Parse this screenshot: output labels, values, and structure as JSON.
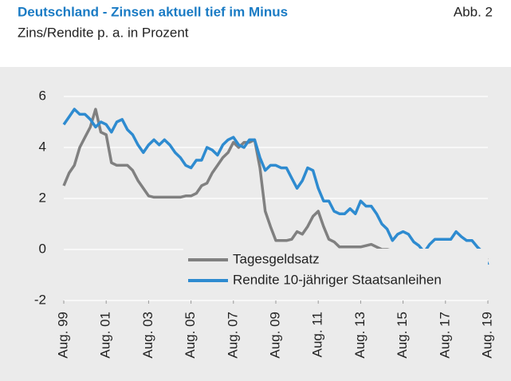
{
  "chart_data": {
    "type": "line",
    "title": "Deutschland - Zinsen aktuell tief im Minus",
    "subtitle": "Zins/Rendite p. a. in Prozent",
    "figure_label": "Abb. 2",
    "x": [
      "1999-08",
      "1999-11",
      "2000-02",
      "2000-05",
      "2000-08",
      "2000-11",
      "2001-02",
      "2001-05",
      "2001-08",
      "2001-11",
      "2002-02",
      "2002-05",
      "2002-08",
      "2002-11",
      "2003-02",
      "2003-05",
      "2003-08",
      "2003-11",
      "2004-02",
      "2004-05",
      "2004-08",
      "2004-11",
      "2005-02",
      "2005-05",
      "2005-08",
      "2005-11",
      "2006-02",
      "2006-05",
      "2006-08",
      "2006-11",
      "2007-02",
      "2007-05",
      "2007-08",
      "2007-11",
      "2008-02",
      "2008-05",
      "2008-08",
      "2008-11",
      "2009-02",
      "2009-05",
      "2009-08",
      "2009-11",
      "2010-02",
      "2010-05",
      "2010-08",
      "2010-11",
      "2011-02",
      "2011-05",
      "2011-08",
      "2011-11",
      "2012-02",
      "2012-05",
      "2012-08",
      "2012-11",
      "2013-02",
      "2013-05",
      "2013-08",
      "2013-11",
      "2014-02",
      "2014-05",
      "2014-08",
      "2014-11",
      "2015-02",
      "2015-05",
      "2015-08",
      "2015-11",
      "2016-02",
      "2016-05",
      "2016-08",
      "2016-11",
      "2017-02",
      "2017-05",
      "2017-08",
      "2017-11",
      "2018-02",
      "2018-05",
      "2018-08",
      "2018-11",
      "2019-02",
      "2019-05",
      "2019-08"
    ],
    "series": [
      {
        "name": "Tagesgeldsatz",
        "color": "#808080",
        "values": [
          2.5,
          3.0,
          3.3,
          4.0,
          4.4,
          4.8,
          5.5,
          4.6,
          4.5,
          3.4,
          3.3,
          3.3,
          3.3,
          3.1,
          2.7,
          2.4,
          2.1,
          2.05,
          2.05,
          2.05,
          2.05,
          2.05,
          2.05,
          2.1,
          2.1,
          2.2,
          2.5,
          2.6,
          3.0,
          3.3,
          3.6,
          3.8,
          4.2,
          4.0,
          4.2,
          4.2,
          4.3,
          3.2,
          1.5,
          0.9,
          0.35,
          0.35,
          0.35,
          0.4,
          0.7,
          0.6,
          0.9,
          1.3,
          1.5,
          0.9,
          0.4,
          0.3,
          0.1,
          0.1,
          0.1,
          0.1,
          0.1,
          0.15,
          0.2,
          0.1,
          0.0,
          0.0,
          -0.05,
          -0.1,
          -0.15,
          -0.2,
          -0.3,
          -0.35,
          -0.35,
          -0.35,
          -0.35,
          -0.35,
          -0.35,
          -0.35,
          -0.35,
          -0.35,
          -0.35,
          -0.35,
          -0.35,
          -0.35,
          -0.4
        ]
      },
      {
        "name": "Rendite 10-jähriger Staatsanleihen",
        "color": "#2e8bd0",
        "values": [
          4.9,
          5.2,
          5.5,
          5.3,
          5.3,
          5.1,
          4.8,
          5.0,
          4.9,
          4.6,
          5.0,
          5.1,
          4.7,
          4.5,
          4.1,
          3.8,
          4.1,
          4.3,
          4.1,
          4.3,
          4.1,
          3.8,
          3.6,
          3.3,
          3.2,
          3.5,
          3.5,
          4.0,
          3.9,
          3.7,
          4.1,
          4.3,
          4.4,
          4.1,
          4.0,
          4.3,
          4.3,
          3.6,
          3.1,
          3.3,
          3.3,
          3.2,
          3.2,
          2.8,
          2.4,
          2.7,
          3.2,
          3.1,
          2.4,
          1.9,
          1.9,
          1.5,
          1.4,
          1.4,
          1.6,
          1.4,
          1.9,
          1.7,
          1.7,
          1.4,
          1.0,
          0.8,
          0.35,
          0.6,
          0.7,
          0.6,
          0.3,
          0.15,
          -0.1,
          0.2,
          0.4,
          0.4,
          0.4,
          0.4,
          0.7,
          0.5,
          0.35,
          0.35,
          0.1,
          -0.1,
          -0.6
        ]
      }
    ],
    "xlim": [
      "1999-08",
      "2019-08"
    ],
    "xticks": [
      {
        "value": "1999-08",
        "label": "Aug. 99"
      },
      {
        "value": "2001-08",
        "label": "Aug. 01"
      },
      {
        "value": "2003-08",
        "label": "Aug. 03"
      },
      {
        "value": "2005-08",
        "label": "Aug. 05"
      },
      {
        "value": "2007-08",
        "label": "Aug. 07"
      },
      {
        "value": "2009-08",
        "label": "Aug. 09"
      },
      {
        "value": "2011-08",
        "label": "Aug. 11"
      },
      {
        "value": "2013-08",
        "label": "Aug. 13"
      },
      {
        "value": "2015-08",
        "label": "Aug. 15"
      },
      {
        "value": "2017-08",
        "label": "Aug. 17"
      },
      {
        "value": "2019-08",
        "label": "Aug. 19"
      }
    ],
    "ylim": [
      -2,
      6
    ],
    "yticks": [
      -2,
      0,
      2,
      4,
      6
    ],
    "grid": true,
    "legend": "lower right"
  }
}
